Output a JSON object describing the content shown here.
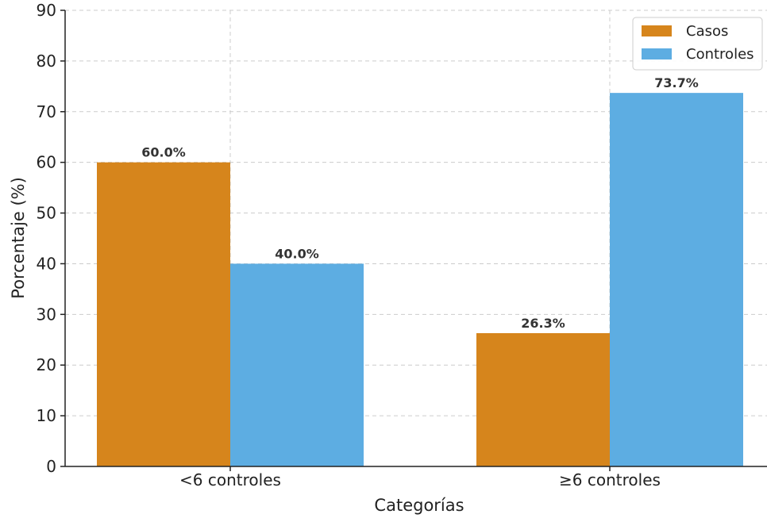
{
  "chart_data": {
    "type": "bar",
    "categories": [
      "<6 controles",
      "≥6 controles"
    ],
    "series": [
      {
        "name": "Casos",
        "values": [
          60.0,
          26.3
        ],
        "labels": [
          "60.0%",
          "26.3%"
        ],
        "color": "#d6851c"
      },
      {
        "name": "Controles",
        "values": [
          40.0,
          73.7
        ],
        "labels": [
          "40.0%",
          "73.7%"
        ],
        "color": "#5dade2"
      }
    ],
    "title": "",
    "xlabel": "Categorías",
    "ylabel": "Porcentaje (%)",
    "ylim": [
      0,
      90
    ],
    "yticks": [
      0,
      10,
      20,
      30,
      40,
      50,
      60,
      70,
      80,
      90
    ],
    "grid": true,
    "legend": "top-right"
  }
}
